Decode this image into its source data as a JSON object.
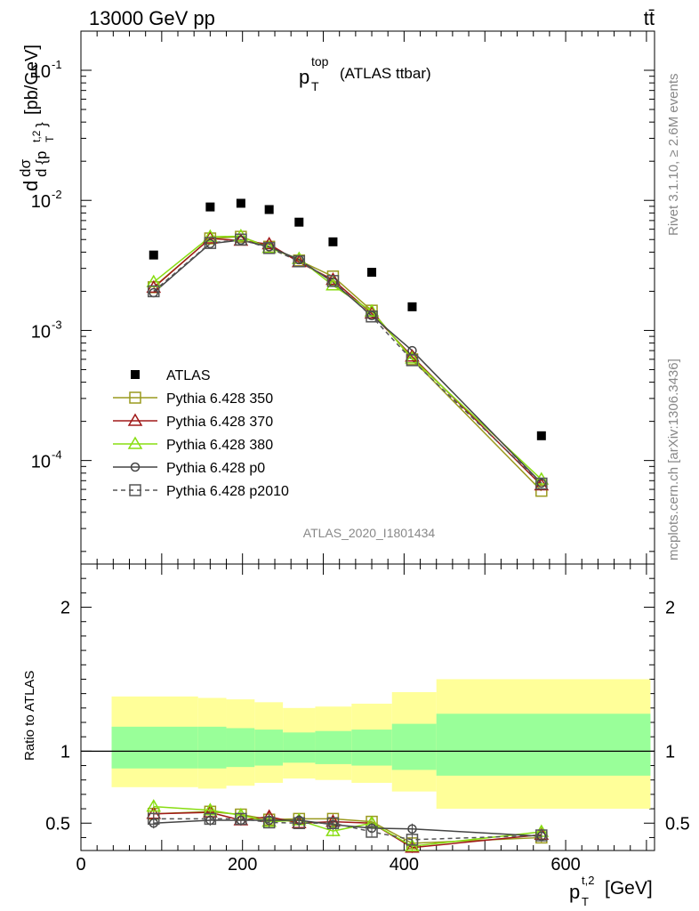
{
  "header": {
    "energy_label": "13000 GeV pp",
    "process_label": "tt̄"
  },
  "side_labels": {
    "rivet": "Rivet 3.1.10, ≥ 2.6M events",
    "mcplots": "mcplots.cern.ch [arXiv:1306.3436]"
  },
  "chart_data": [
    {
      "type": "scatter",
      "title_main": "p",
      "title_sup": "top",
      "title_sub": "T",
      "title_rest": "(ATLAS ttbar)",
      "analysis_id": "ATLAS_2020_I1801434",
      "ylabel": "d σ / d {p_T^{t,2}} [pb/GeV]",
      "yscale": "log",
      "ylim": [
        1.6e-05,
        0.2
      ],
      "xlim": [
        0,
        710
      ],
      "x": [
        90,
        160,
        198,
        233,
        270,
        312,
        360,
        410,
        570
      ],
      "series": [
        {
          "name": "ATLAS",
          "marker": "filled-square",
          "color": "#000000",
          "values": [
            0.0038,
            0.0089,
            0.0095,
            0.0085,
            0.0068,
            0.0048,
            0.0028,
            0.00152,
            0.000155
          ]
        },
        {
          "name": "Pythia 6.428 350",
          "marker": "open-square",
          "color": "#9a9a1e",
          "line": "solid",
          "values": [
            0.00215,
            0.0051,
            0.00525,
            0.0044,
            0.00345,
            0.0026,
            0.00142,
            0.0006,
            5.85e-05
          ]
        },
        {
          "name": "Pythia 6.428 370",
          "marker": "open-triangle",
          "color": "#a01818",
          "line": "solid",
          "values": [
            0.00213,
            0.0051,
            0.0049,
            0.0046,
            0.00335,
            0.00245,
            0.00135,
            0.00063,
            6.45e-05
          ]
        },
        {
          "name": "Pythia 6.428 380",
          "marker": "open-triangle",
          "color": "#88dd11",
          "line": "solid",
          "values": [
            0.00235,
            0.00525,
            0.0053,
            0.0043,
            0.00355,
            0.00222,
            0.0014,
            0.00061,
            7.15e-05
          ]
        },
        {
          "name": "Pythia 6.428 p0",
          "marker": "open-circle",
          "color": "#444444",
          "line": "solid",
          "values": [
            0.00195,
            0.00465,
            0.00495,
            0.0044,
            0.0035,
            0.00235,
            0.0013,
            0.0007,
            6.7e-05
          ]
        },
        {
          "name": "Pythia 6.428 p2010",
          "marker": "open-square",
          "color": "#555555",
          "line": "dashed",
          "values": [
            0.002,
            0.0047,
            0.005,
            0.0043,
            0.0034,
            0.0024,
            0.00128,
            0.00059,
            6.65e-05
          ]
        }
      ]
    },
    {
      "type": "scatter",
      "ylabel": "Ratio to ATLAS",
      "ylim": [
        0.31,
        2.3
      ],
      "xlim": [
        0,
        710
      ],
      "xlabel_main": "p",
      "xlabel_sup": "t,2",
      "xlabel_sub": "T",
      "xlabel_rest": "[GeV]",
      "xticks": [
        0,
        200,
        400,
        600
      ],
      "yticks": [
        0.5,
        1,
        2
      ],
      "bins": [
        [
          38,
          145
        ],
        [
          145,
          180
        ],
        [
          180,
          215
        ],
        [
          215,
          250
        ],
        [
          250,
          290
        ],
        [
          290,
          335
        ],
        [
          335,
          385
        ],
        [
          385,
          440
        ],
        [
          440,
          705
        ]
      ],
      "band_green": [
        [
          0.88,
          1.17
        ],
        [
          0.88,
          1.17
        ],
        [
          0.89,
          1.16
        ],
        [
          0.9,
          1.15
        ],
        [
          0.92,
          1.13
        ],
        [
          0.91,
          1.14
        ],
        [
          0.9,
          1.15
        ],
        [
          0.87,
          1.19
        ],
        [
          0.83,
          1.26
        ]
      ],
      "band_yellow": [
        [
          0.75,
          1.38
        ],
        [
          0.74,
          1.37
        ],
        [
          0.76,
          1.36
        ],
        [
          0.78,
          1.34
        ],
        [
          0.81,
          1.3
        ],
        [
          0.8,
          1.31
        ],
        [
          0.78,
          1.33
        ],
        [
          0.72,
          1.41
        ],
        [
          0.6,
          1.5
        ]
      ],
      "x": [
        90,
        160,
        198,
        233,
        270,
        312,
        360,
        410,
        570
      ],
      "series": [
        {
          "name": "Pythia 6.428 350",
          "values": [
            0.565,
            0.58,
            0.56,
            0.525,
            0.53,
            0.53,
            0.51,
            0.36,
            0.4
          ]
        },
        {
          "name": "Pythia 6.428 370",
          "values": [
            0.565,
            0.575,
            0.52,
            0.545,
            0.5,
            0.51,
            0.5,
            0.33,
            0.42
          ]
        },
        {
          "name": "Pythia 6.428 380",
          "values": [
            0.615,
            0.59,
            0.555,
            0.51,
            0.52,
            0.445,
            0.5,
            0.34,
            0.44
          ]
        },
        {
          "name": "Pythia 6.428 p0",
          "values": [
            0.5,
            0.52,
            0.52,
            0.52,
            0.52,
            0.49,
            0.465,
            0.46,
            0.41
          ]
        },
        {
          "name": "Pythia 6.428 p2010",
          "values": [
            0.53,
            0.53,
            0.53,
            0.505,
            0.5,
            0.5,
            0.44,
            0.385,
            0.415
          ]
        }
      ]
    }
  ]
}
